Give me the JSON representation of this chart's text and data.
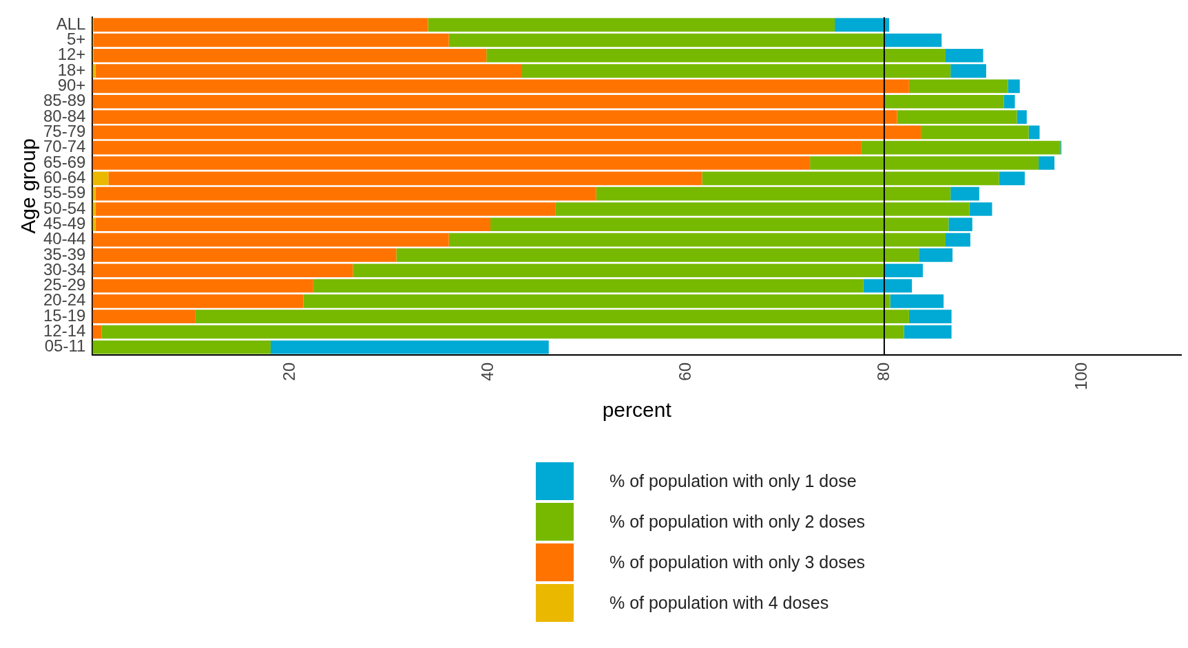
{
  "chart_data": {
    "type": "bar",
    "orientation": "horizontal",
    "stacked": true,
    "xlabel": "percent",
    "ylabel": "Age group",
    "categories": [
      "ALL",
      "5+",
      "12+",
      "18+",
      "90+",
      "85-89",
      "80-84",
      "75-79",
      "70-74",
      "65-69",
      "60-64",
      "55-59",
      "50-54",
      "45-49",
      "40-44",
      "35-39",
      "30-34",
      "25-29",
      "20-24",
      "15-19",
      "12-14",
      "05-11"
    ],
    "series": [
      {
        "name": "% of population with 4 doses",
        "color": "#ebb800",
        "values": [
          0.1,
          0.1,
          0.1,
          0.3,
          0,
          0,
          0,
          0,
          0,
          0,
          1.6,
          0.3,
          0.3,
          0.3,
          0,
          0,
          0,
          0,
          0,
          0,
          0,
          0
        ]
      },
      {
        "name": "% of population with only 3 doses",
        "color": "#ff7400",
        "values": [
          33.8,
          35.9,
          39.7,
          43.1,
          82.5,
          80.0,
          81.3,
          83.7,
          77.7,
          72.5,
          60.0,
          50.6,
          46.5,
          39.9,
          36.0,
          30.7,
          26.3,
          22.3,
          21.3,
          10.4,
          0.9,
          0
        ]
      },
      {
        "name": "% of population with only 2 doses",
        "color": "#77b900",
        "values": [
          41.1,
          43.9,
          46.4,
          43.3,
          10.0,
          12.1,
          12.1,
          10.9,
          20.1,
          23.1,
          30.0,
          35.8,
          41.8,
          46.3,
          50.2,
          52.8,
          53.6,
          55.6,
          59.3,
          72.1,
          81.1,
          18.0
        ]
      },
      {
        "name": "% of population with only 1 dose",
        "color": "#00aad4",
        "values": [
          5.5,
          5.9,
          3.8,
          3.6,
          1.2,
          1.1,
          1.0,
          1.1,
          0.1,
          1.6,
          2.6,
          2.9,
          2.3,
          2.4,
          2.5,
          3.4,
          4.0,
          4.9,
          5.4,
          4.3,
          4.8,
          28.1
        ]
      }
    ],
    "xlim": [
      0,
      110
    ],
    "xticks": [
      20,
      40,
      60,
      80,
      100
    ],
    "ref_lines": [
      {
        "axis": "x",
        "value": 80,
        "color": "#000000"
      }
    ],
    "grid": false,
    "legend": "bottom"
  }
}
